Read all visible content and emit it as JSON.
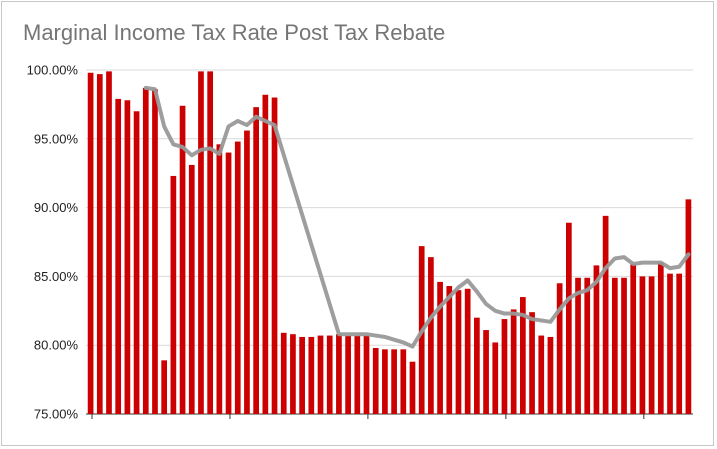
{
  "chart_data": {
    "type": "bar",
    "title": "Marginal Income Tax Rate Post Tax Rebate",
    "xlabel": "",
    "ylabel": "",
    "ylim": [
      75,
      100
    ],
    "yticks": [
      "100.00%",
      "95.00%",
      "90.00%",
      "85.00%",
      "80.00%",
      "75.00%"
    ],
    "grid": true,
    "legend": "none",
    "series": [
      {
        "type": "bar",
        "color": "#cc0000",
        "values": [
          99.8,
          99.7,
          99.9,
          97.9,
          97.8,
          97.0,
          98.7,
          98.6,
          78.9,
          92.3,
          97.4,
          93.1,
          99.9,
          99.9,
          94.6,
          94.0,
          94.8,
          95.6,
          97.3,
          98.2,
          98.0,
          80.9,
          80.8,
          80.6,
          80.6,
          80.7,
          80.7,
          80.8,
          80.7,
          80.7,
          80.7,
          79.8,
          79.7,
          79.7,
          79.7,
          78.8,
          87.2,
          86.4,
          84.6,
          84.3,
          84.0,
          84.1,
          82.0,
          81.1,
          80.2,
          81.9,
          82.6,
          83.5,
          82.4,
          80.7,
          80.6,
          84.5,
          88.9,
          84.9,
          84.9,
          85.8,
          89.4,
          84.9,
          84.9,
          85.9,
          85.0,
          85.0,
          86.0,
          85.2,
          85.2,
          90.6
        ]
      },
      {
        "type": "line",
        "color": "#999999",
        "values": [
          null,
          null,
          null,
          null,
          null,
          null,
          98.7,
          98.6,
          95.9,
          94.6,
          94.4,
          93.8,
          94.2,
          94.3,
          93.9,
          95.9,
          96.3,
          96.0,
          96.6,
          96.3,
          96.0,
          null,
          null,
          null,
          null,
          null,
          null,
          80.8,
          80.8,
          80.8,
          80.8,
          80.7,
          80.6,
          80.4,
          80.2,
          79.9,
          81.0,
          82.0,
          82.8,
          83.5,
          84.2,
          84.7,
          83.9,
          83.0,
          82.5,
          82.3,
          82.3,
          82.2,
          81.9,
          81.8,
          81.7,
          82.6,
          83.4,
          83.8,
          84.0,
          84.6,
          85.6,
          86.3,
          86.4,
          85.9,
          86.0,
          86.0,
          86.0,
          85.6,
          85.7,
          86.6
        ]
      }
    ]
  }
}
